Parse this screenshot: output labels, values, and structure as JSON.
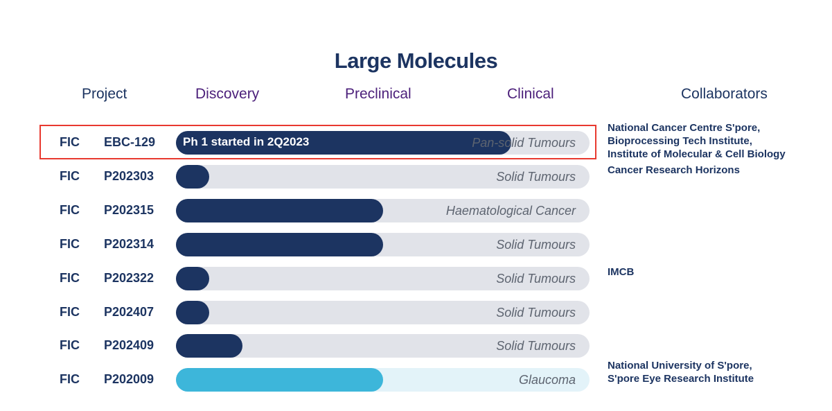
{
  "title": "Large Molecules",
  "headers": {
    "project": "Project",
    "discovery": "Discovery",
    "preclinical": "Preclinical",
    "clinical": "Clinical",
    "collaborators": "Collaborators"
  },
  "colors": {
    "navy": "#1c3461",
    "purple": "#4b1f7a",
    "cyan": "#3db6da",
    "track": "#e1e3e9",
    "track_light": "#e3f3f9",
    "highlight": "#e8392f"
  },
  "chart_data": {
    "type": "bar",
    "orientation": "horizontal",
    "title": "Large Molecules",
    "stage_scale": [
      "Discovery",
      "Preclinical",
      "Clinical"
    ],
    "x_units": "fraction of pipeline track completed (0 = start, 1 = end)",
    "categories": [
      "EBC-129",
      "P202303",
      "P202315",
      "P202314",
      "P202322",
      "P202407",
      "P202409",
      "P202009"
    ],
    "values": [
      0.81,
      0.08,
      0.5,
      0.5,
      0.08,
      0.08,
      0.16,
      0.5
    ]
  },
  "rows": [
    {
      "type": "FIC",
      "id": "EBC-129",
      "indication": "Pan-solid Tumours",
      "progress": 0.81,
      "fill_label": "Ph 1 started in 2Q2023",
      "color": "navy",
      "highlighted": true,
      "collaborators": [
        "National Cancer Centre S'pore,",
        "Bioprocessing Tech Institute,",
        "Institute of Molecular & Cell Biology"
      ]
    },
    {
      "type": "FIC",
      "id": "P202303",
      "indication": "Solid Tumours",
      "progress": 0.08,
      "fill_label": "",
      "color": "navy",
      "highlighted": false,
      "collaborators": [
        "Cancer Research Horizons"
      ]
    },
    {
      "type": "FIC",
      "id": "P202315",
      "indication": "Haematological Cancer",
      "progress": 0.5,
      "fill_label": "",
      "color": "navy",
      "highlighted": false,
      "collaborators": []
    },
    {
      "type": "FIC",
      "id": "P202314",
      "indication": "Solid Tumours",
      "progress": 0.5,
      "fill_label": "",
      "color": "navy",
      "highlighted": false,
      "collaborators": []
    },
    {
      "type": "FIC",
      "id": "P202322",
      "indication": "Solid Tumours",
      "progress": 0.08,
      "fill_label": "",
      "color": "navy",
      "highlighted": false,
      "collaborators": [
        "IMCB"
      ]
    },
    {
      "type": "FIC",
      "id": "P202407",
      "indication": "Solid Tumours",
      "progress": 0.08,
      "fill_label": "",
      "color": "navy",
      "highlighted": false,
      "collaborators": []
    },
    {
      "type": "FIC",
      "id": "P202409",
      "indication": "Solid Tumours",
      "progress": 0.16,
      "fill_label": "",
      "color": "navy",
      "highlighted": false,
      "collaborators": []
    },
    {
      "type": "FIC",
      "id": "P202009",
      "indication": "Glaucoma",
      "progress": 0.5,
      "fill_label": "",
      "color": "cyan",
      "highlighted": false,
      "collaborators": [
        "National University of S'pore,",
        "S'pore Eye Research Institute"
      ]
    }
  ]
}
